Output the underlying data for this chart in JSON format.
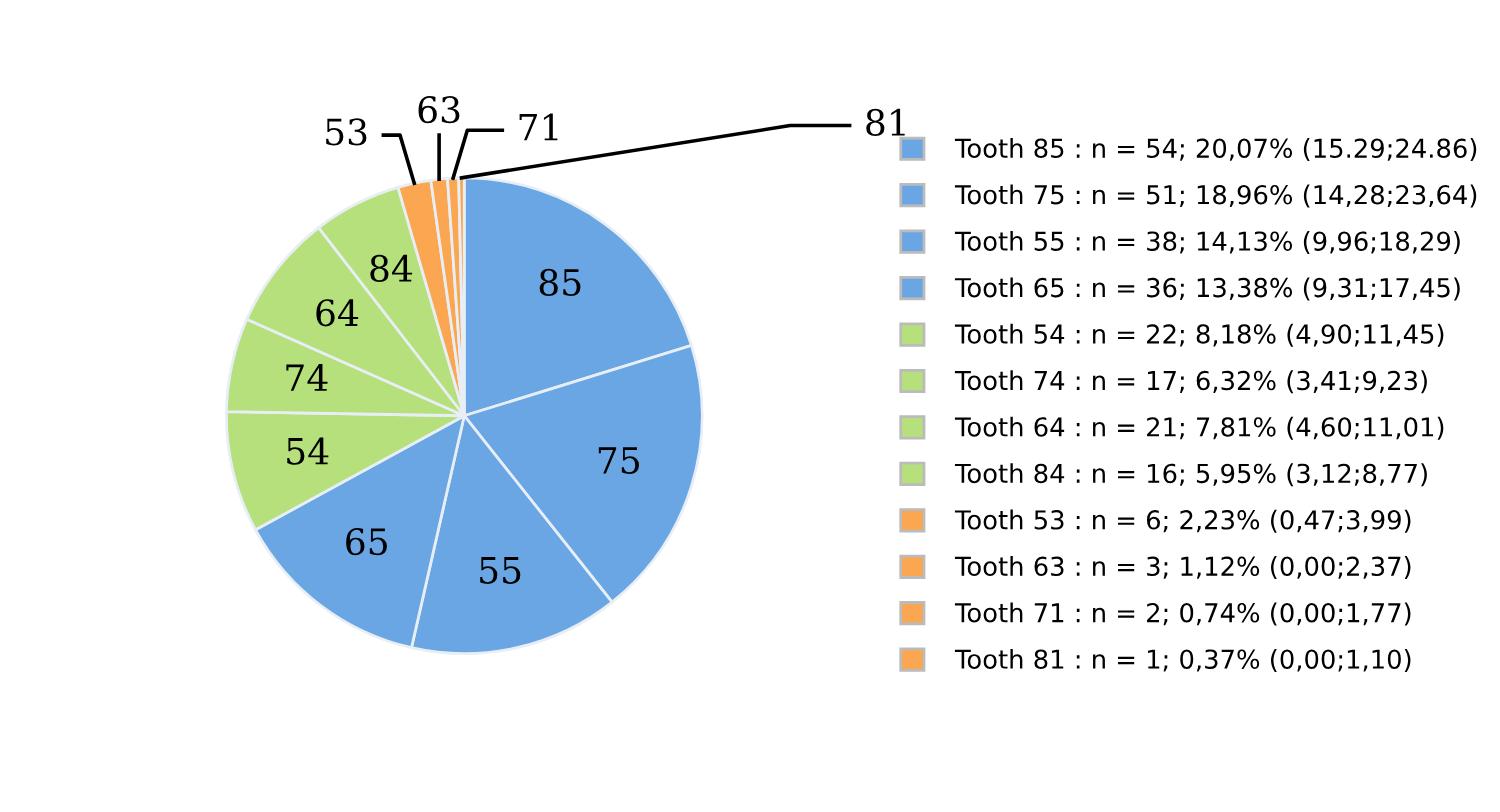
{
  "chart_data": {
    "type": "pie",
    "categories": [
      "Tooth 85 : n = 54; 20,07% (15.29;24.86)",
      "Tooth 75 : n = 51; 18,96% (14,28;23,64)",
      "Tooth 55 : n = 38; 14,13% (9,96;18,29)",
      "Tooth 65 : n = 36; 13,38% (9,31;17,45)",
      "Tooth 54 : n = 22; 8,18% (4,90;11,45)",
      "Tooth 74 : n = 17; 6,32% (3,41;9,23)",
      "Tooth 64 : n = 21; 7,81% (4,60;11,01)",
      "Tooth 84 : n = 16; 5,95% (3,12;8,77)",
      "Tooth 53 : n = 6; 2,23% (0,47;3,99)",
      "Tooth 63 : n = 3; 1,12% (0,00;2,37)",
      "Tooth 71 : n = 2; 0,74% (0,00;1,77)",
      "Tooth 81 : n = 1; 0,37% (0,00;1,10)"
    ],
    "values": [
      54,
      51,
      38,
      36,
      22,
      17,
      21,
      16,
      6,
      3,
      2,
      1
    ],
    "annotations": [
      {
        "text": "85",
        "x": "Tooth 85 : n = 54; 20,07% (15.29;24.86)"
      },
      {
        "text": "75",
        "x": "Tooth 75 : n = 51; 18,96% (14,28;23,64)"
      },
      {
        "text": "55",
        "x": "Tooth 55 : n = 38; 14,13% (9,96;18,29)"
      },
      {
        "text": "65",
        "x": "Tooth 65 : n = 36; 13,38% (9,31;17,45)"
      },
      {
        "text": "54",
        "x": "Tooth 54 : n = 22; 8,18% (4,90;11,45)"
      },
      {
        "text": "74",
        "x": "Tooth 74 : n = 17; 6,32% (3,41;9,23)"
      },
      {
        "text": "64",
        "x": "Tooth 64 : n = 21; 7,81% (4,60;11,01)"
      },
      {
        "text": "84",
        "x": "Tooth 84 : n = 16; 5,95% (3,12;8,77)"
      },
      {
        "text": "53",
        "x": "Tooth 53 : n = 6; 2,23% (0,47;3,99)"
      },
      {
        "text": "63",
        "x": "Tooth 63 : n = 3; 1,12% (0,00;2,37)"
      },
      {
        "text": "71",
        "x": "Tooth 71 : n = 2; 0,74% (0,00;1,77)"
      },
      {
        "text": "81",
        "x": "Tooth 81 : n = 1; 0,37% (0,00;1,10)"
      }
    ],
    "colors": [
      "#6aa6e4",
      "#6aa6e4",
      "#6aa6e4",
      "#6aa6e4",
      "#b5e07c",
      "#b5e07c",
      "#b5e07c",
      "#b5e07c",
      "#fba751",
      "#fba751",
      "#fba751",
      "#fba751"
    ],
    "legend": "right"
  }
}
